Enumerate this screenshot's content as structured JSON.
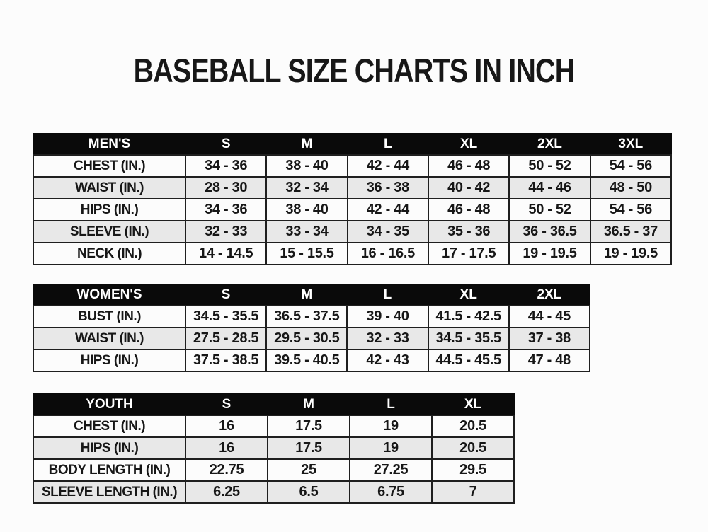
{
  "title": "BASEBALL SIZE CHARTS IN INCH",
  "colors": {
    "page_bg": "#fcfcfc",
    "text": "#171717",
    "header_bg": "#0a0a0a",
    "header_text": "#ffffff",
    "row_bg": "#fcfcfc",
    "row_alt_bg": "#e8e8e8",
    "border": "#1f1f1f"
  },
  "chart_data": [
    {
      "type": "table",
      "name": "mens",
      "title": "MEN'S",
      "columns": [
        "MEN'S",
        "S",
        "M",
        "L",
        "XL",
        "2XL",
        "3XL"
      ],
      "rows": [
        {
          "label": "CHEST (IN.)",
          "values": [
            "34 - 36",
            "38 - 40",
            "42 - 44",
            "46 - 48",
            "50 - 52",
            "54 - 56"
          ]
        },
        {
          "label": "WAIST (IN.)",
          "values": [
            "28 - 30",
            "32 - 34",
            "36 - 38",
            "40 - 42",
            "44 - 46",
            "48 - 50"
          ]
        },
        {
          "label": "HIPS (IN.)",
          "values": [
            "34 - 36",
            "38 - 40",
            "42 - 44",
            "46 - 48",
            "50 - 52",
            "54 - 56"
          ]
        },
        {
          "label": "SLEEVE (IN.)",
          "values": [
            "32 - 33",
            "33 - 34",
            "34 - 35",
            "35 - 36",
            "36 - 36.5",
            "36.5 - 37"
          ]
        },
        {
          "label": "NECK (IN.)",
          "values": [
            "14 - 14.5",
            "15 - 15.5",
            "16 - 16.5",
            "17 - 17.5",
            "19 - 19.5",
            "19 - 19.5"
          ]
        }
      ]
    },
    {
      "type": "table",
      "name": "womens",
      "title": "WOMEN'S",
      "columns": [
        "WOMEN'S",
        "S",
        "M",
        "L",
        "XL",
        "2XL"
      ],
      "rows": [
        {
          "label": "BUST (IN.)",
          "values": [
            "34.5 - 35.5",
            "36.5 - 37.5",
            "39 - 40",
            "41.5 - 42.5",
            "44 - 45"
          ]
        },
        {
          "label": "WAIST (IN.)",
          "values": [
            "27.5 - 28.5",
            "29.5 - 30.5",
            "32 - 33",
            "34.5 - 35.5",
            "37 - 38"
          ]
        },
        {
          "label": "HIPS (IN.)",
          "values": [
            "37.5 - 38.5",
            "39.5 - 40.5",
            "42 - 43",
            "44.5 - 45.5",
            "47 - 48"
          ]
        }
      ]
    },
    {
      "type": "table",
      "name": "youth",
      "title": "YOUTH",
      "columns": [
        "YOUTH",
        "S",
        "M",
        "L",
        "XL"
      ],
      "rows": [
        {
          "label": "CHEST (IN.)",
          "values": [
            "16",
            "17.5",
            "19",
            "20.5"
          ]
        },
        {
          "label": "HIPS (IN.)",
          "values": [
            "16",
            "17.5",
            "19",
            "20.5"
          ]
        },
        {
          "label": "BODY LENGTH (IN.)",
          "values": [
            "22.75",
            "25",
            "27.25",
            "29.5"
          ]
        },
        {
          "label": "SLEEVE LENGTH (IN.)",
          "values": [
            "6.25",
            "6.5",
            "6.75",
            "7"
          ]
        }
      ]
    }
  ]
}
